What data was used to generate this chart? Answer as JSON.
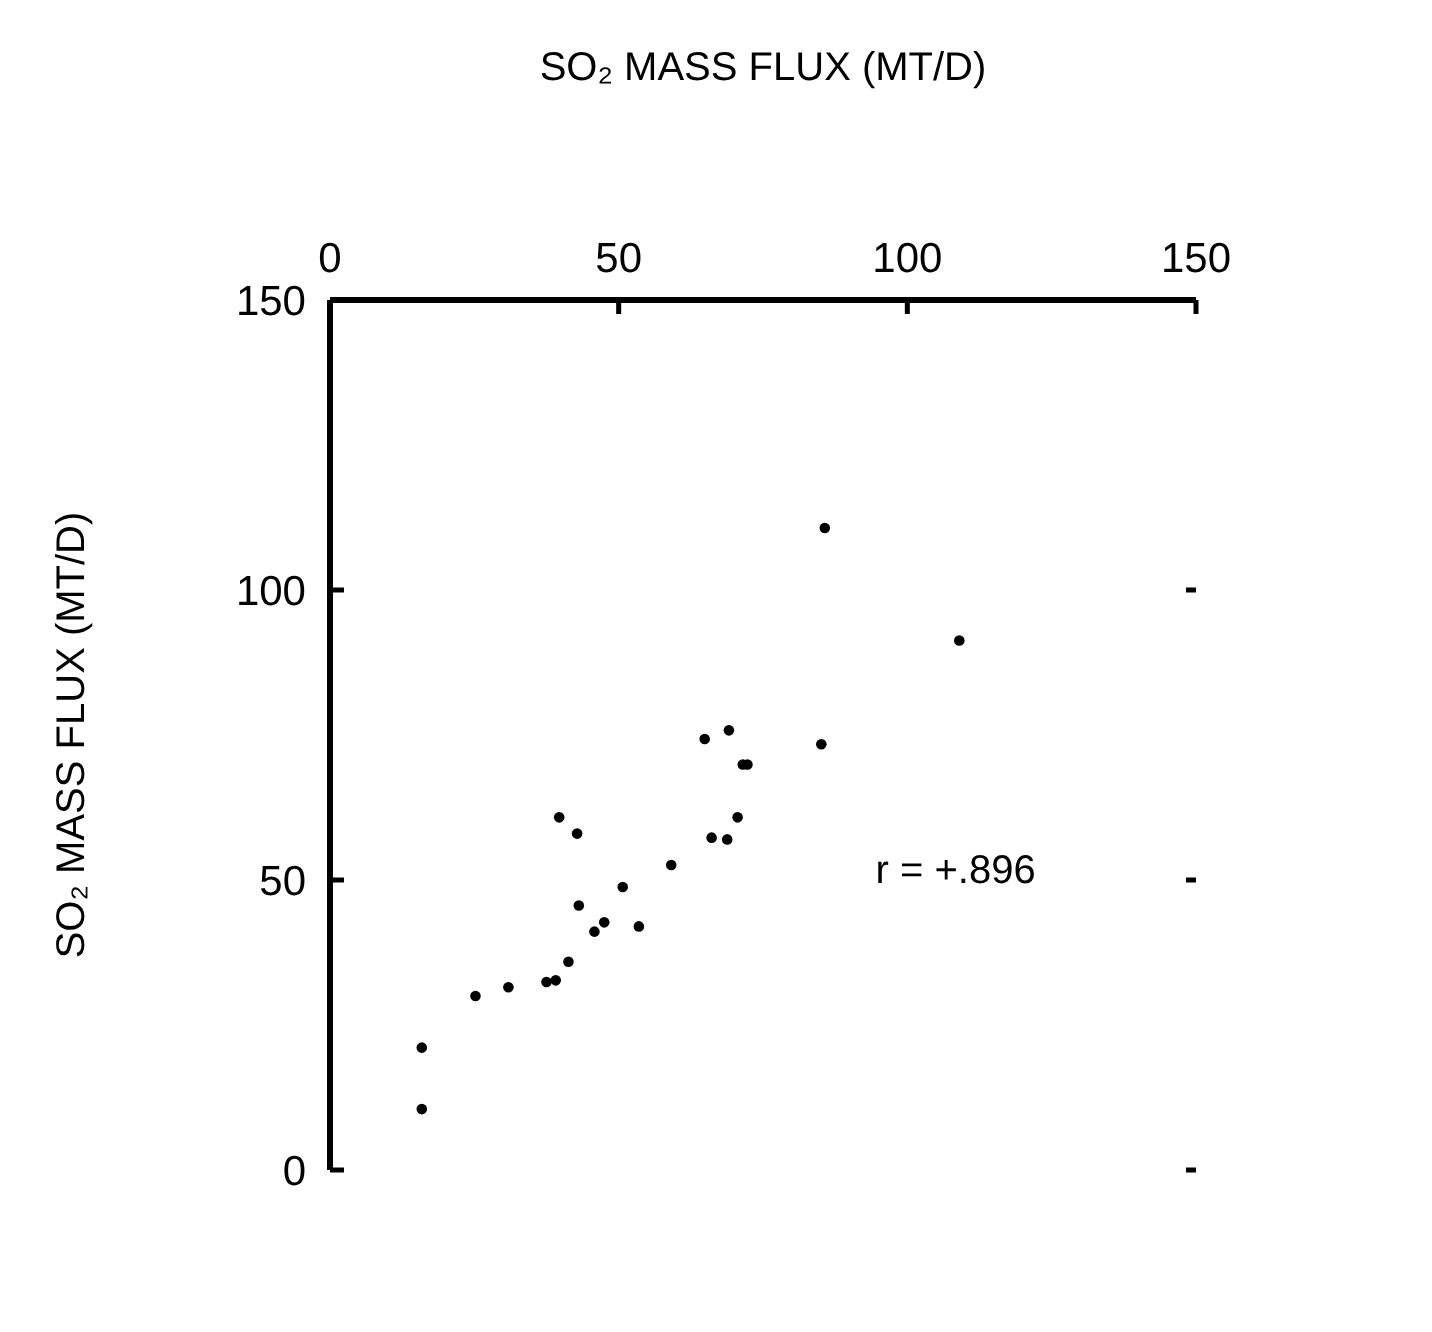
{
  "chart_data": {
    "type": "scatter",
    "xlabel": "SO₂ MASS FLUX (MT/D)",
    "ylabel": "SO₂ MASS FLUX (MT/D)",
    "x": [
      85.7,
      109.0,
      64.9,
      69.1,
      85.1,
      71.5,
      72.3,
      70.6,
      66.1,
      68.8,
      59.1,
      50.7,
      47.5,
      45.8,
      53.5,
      39.7,
      42.8,
      43.1,
      41.3,
      39.1,
      37.5,
      30.9,
      25.2,
      15.9,
      15.9
    ],
    "values": [
      110.7,
      91.3,
      74.3,
      75.8,
      73.4,
      69.9,
      69.9,
      60.8,
      57.3,
      57.0,
      52.6,
      48.8,
      42.7,
      41.1,
      42.0,
      60.8,
      58.0,
      45.6,
      35.9,
      32.7,
      32.4,
      31.5,
      30.0,
      21.1,
      10.5
    ],
    "color": "#000000",
    "marker": "circle",
    "xlim": [
      0,
      150
    ],
    "xticks": [
      0,
      50,
      100,
      150
    ],
    "ylim": [
      0,
      150
    ],
    "yticks": [
      0,
      50,
      100,
      150
    ],
    "annotations": [
      "r = +.896"
    ]
  }
}
